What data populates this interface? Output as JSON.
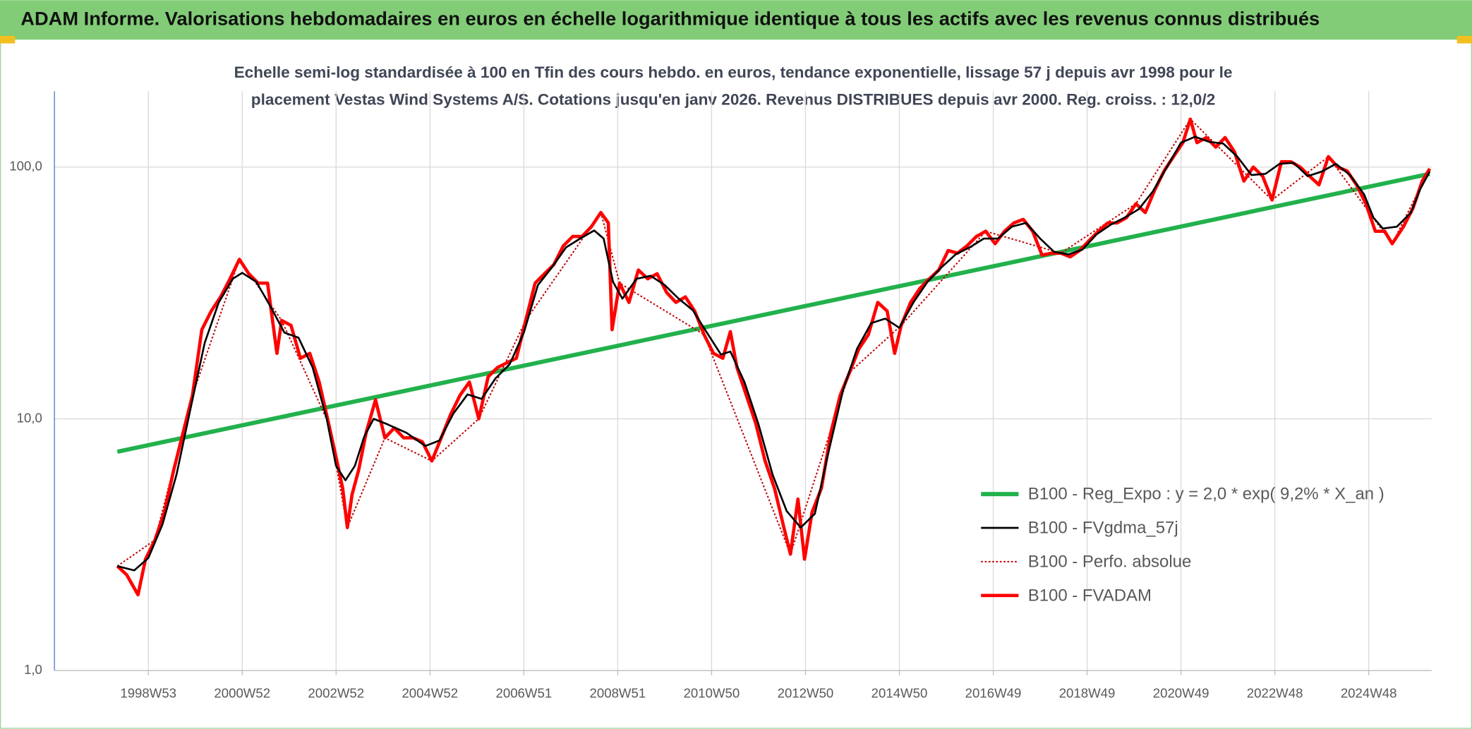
{
  "chart_data": {
    "type": "line",
    "title": "ADAM Informe. Valorisations hebdomadaires en euros en échelle logarithmique identique à tous les actifs avec les revenus connus distribués",
    "subtitle": [
      "Echelle semi-log standardisée à 100 en Tfin des cours hebdo. en euros, tendance exponentielle, lissage 57 j depuis avr 1998 pour le",
      "placement Vestas Wind Systems A/S. Cotations jusqu'en janv 2026. Revenus DISTRIBUES depuis avr 2000. Reg. croiss. : 12,0/2"
    ],
    "log_scale": true,
    "grid": true,
    "legend": "lower right",
    "xlim": [
      1997.0,
      2026.34
    ],
    "xticks": [
      {
        "value": 1999.0,
        "label": "1998W53"
      },
      {
        "value": 2001.0,
        "label": "2000W52"
      },
      {
        "value": 2003.0,
        "label": "2002W52"
      },
      {
        "value": 2005.0,
        "label": "2004W52"
      },
      {
        "value": 2007.0,
        "label": "2006W51"
      },
      {
        "value": 2009.0,
        "label": "2008W51"
      },
      {
        "value": 2011.0,
        "label": "2010W50"
      },
      {
        "value": 2013.0,
        "label": "2012W50"
      },
      {
        "value": 2015.0,
        "label": "2014W50"
      },
      {
        "value": 2017.0,
        "label": "2016W49"
      },
      {
        "value": 2019.0,
        "label": "2018W49"
      },
      {
        "value": 2021.0,
        "label": "2020W49"
      },
      {
        "value": 2023.0,
        "label": "2022W48"
      },
      {
        "value": 2025.0,
        "label": "2024W48"
      }
    ],
    "ylim": [
      1,
      200
    ],
    "yticks": [
      {
        "value": 1,
        "label": "1,0"
      },
      {
        "value": 10,
        "label": "10,0"
      },
      {
        "value": 100,
        "label": "100,0"
      }
    ],
    "series": [
      {
        "name": "B100 - Reg_Expo : y = 2,0 * exp( 9,2% *  X_an )",
        "color": "#22b14c",
        "line_style": "solid",
        "x": [
          1998.34,
          2026.3
        ],
        "values": [
          7.4,
          94
        ]
      },
      {
        "name": "B100 - FVgdma_57j",
        "color": "#000000",
        "line_style": "solid",
        "x": [
          1998.34,
          1998.7,
          1999.0,
          1999.3,
          1999.6,
          1999.9,
          2000.2,
          2000.5,
          2000.8,
          2001.0,
          2001.3,
          2001.6,
          2001.9,
          2002.2,
          2002.5,
          2002.8,
          2003.0,
          2003.2,
          2003.4,
          2003.6,
          2003.8,
          2004.1,
          2004.5,
          2004.9,
          2005.2,
          2005.5,
          2005.8,
          2006.1,
          2006.4,
          2006.7,
          2007.0,
          2007.3,
          2007.6,
          2007.9,
          2008.2,
          2008.5,
          2008.7,
          2008.9,
          2009.1,
          2009.4,
          2009.7,
          2010.0,
          2010.3,
          2010.6,
          2010.9,
          2011.2,
          2011.4,
          2011.7,
          2012.0,
          2012.3,
          2012.6,
          2012.9,
          2013.2,
          2013.5,
          2013.8,
          2014.1,
          2014.4,
          2014.7,
          2015.0,
          2015.3,
          2015.6,
          2015.9,
          2016.2,
          2016.5,
          2016.8,
          2017.1,
          2017.4,
          2017.7,
          2018.0,
          2018.3,
          2018.6,
          2018.9,
          2019.2,
          2019.5,
          2019.8,
          2020.1,
          2020.4,
          2020.7,
          2021.0,
          2021.3,
          2021.6,
          2021.9,
          2022.2,
          2022.5,
          2022.8,
          2023.1,
          2023.4,
          2023.7,
          2024.0,
          2024.3,
          2024.6,
          2024.9,
          2025.1,
          2025.3,
          2025.6,
          2025.9,
          2026.1,
          2026.3
        ],
        "values": [
          2.6,
          2.5,
          2.8,
          3.8,
          6,
          11,
          20,
          29,
          36,
          38,
          35,
          28,
          22,
          21,
          16,
          10,
          6.5,
          5.7,
          6.5,
          8.5,
          10,
          9.5,
          8.8,
          7.8,
          8.2,
          10.5,
          12.5,
          12,
          14.5,
          16.5,
          22,
          34,
          40,
          48,
          52,
          56,
          52,
          35,
          30,
          36,
          37,
          34,
          30,
          27,
          22,
          18,
          18.5,
          14,
          9.5,
          6,
          4.3,
          3.7,
          4.2,
          7.5,
          13,
          19,
          24,
          25,
          23,
          29,
          35,
          40,
          45,
          48,
          52,
          52,
          58,
          60,
          52,
          46,
          45,
          47,
          54,
          59,
          63,
          68,
          80,
          100,
          125,
          132,
          126,
          124,
          110,
          93,
          94,
          103,
          104,
          92,
          96,
          103,
          93,
          78,
          63,
          57,
          58,
          66,
          82,
          96
        ]
      },
      {
        "name": "B100 - Perfo. absolue",
        "color": "#c00000",
        "line_style": "dotted",
        "x": [
          1998.34,
          1999.14,
          1999.94,
          2000.94,
          2001.84,
          2002.84,
          2003.24,
          2004.04,
          2005.04,
          2006.04,
          2007.04,
          2008.64,
          2009.04,
          2010.84,
          2012.68,
          2013.94,
          2015.04,
          2016.84,
          2018.44,
          2020.04,
          2021.2,
          2022.94,
          2024.14,
          2025.5,
          2026.3
        ],
        "values": [
          2.6,
          3.3,
          12.4,
          43,
          24.6,
          9.6,
          3.7,
          8.4,
          6.8,
          10,
          24.6,
          66,
          34.6,
          21.6,
          2.9,
          15.3,
          23.5,
          55.6,
          45.5,
          71.5,
          155,
          74,
          110,
          49.6,
          98.5
        ]
      },
      {
        "name": "B100 - FVADAM",
        "color": "#ff0000",
        "line_style": "solid",
        "x": [
          1998.34,
          1998.54,
          1998.78,
          1998.94,
          1999.14,
          1999.34,
          1999.54,
          1999.74,
          1999.94,
          2000.14,
          2000.34,
          2000.54,
          2000.74,
          2000.94,
          2001.14,
          2001.34,
          2001.54,
          2001.74,
          2001.84,
          2002.04,
          2002.24,
          2002.44,
          2002.64,
          2002.84,
          2003.04,
          2003.14,
          2003.24,
          2003.34,
          2003.48,
          2003.64,
          2003.84,
          2004.04,
          2004.24,
          2004.44,
          2004.64,
          2004.84,
          2005.04,
          2005.24,
          2005.44,
          2005.64,
          2005.84,
          2006.04,
          2006.24,
          2006.44,
          2006.64,
          2006.84,
          2007.04,
          2007.24,
          2007.44,
          2007.64,
          2007.84,
          2008.04,
          2008.24,
          2008.44,
          2008.64,
          2008.8,
          2008.88,
          2009.04,
          2009.24,
          2009.44,
          2009.64,
          2009.84,
          2010.04,
          2010.24,
          2010.44,
          2010.64,
          2010.84,
          2011.04,
          2011.24,
          2011.4,
          2011.54,
          2011.74,
          2011.94,
          2012.14,
          2012.34,
          2012.54,
          2012.68,
          2012.84,
          2012.98,
          2013.14,
          2013.34,
          2013.54,
          2013.74,
          2013.94,
          2014.14,
          2014.34,
          2014.54,
          2014.74,
          2014.9,
          2015.04,
          2015.24,
          2015.44,
          2015.64,
          2015.84,
          2016.04,
          2016.24,
          2016.44,
          2016.64,
          2016.84,
          2017.04,
          2017.24,
          2017.44,
          2017.64,
          2017.84,
          2018.04,
          2018.24,
          2018.44,
          2018.64,
          2018.84,
          2019.04,
          2019.24,
          2019.44,
          2019.64,
          2019.84,
          2020.04,
          2020.24,
          2020.44,
          2020.64,
          2020.84,
          2021.04,
          2021.2,
          2021.34,
          2021.54,
          2021.74,
          2021.94,
          2022.14,
          2022.34,
          2022.54,
          2022.74,
          2022.94,
          2023.14,
          2023.34,
          2023.54,
          2023.74,
          2023.94,
          2024.14,
          2024.34,
          2024.54,
          2024.74,
          2024.94,
          2025.14,
          2025.34,
          2025.5,
          2025.74,
          2025.94,
          2026.14,
          2026.3
        ],
        "values": [
          2.6,
          2.4,
          2.0,
          2.77,
          3.3,
          4.25,
          6.25,
          8.8,
          12.4,
          22.6,
          26.8,
          30.5,
          36,
          43,
          37.7,
          34.6,
          34.6,
          18.2,
          24.6,
          23.5,
          17.4,
          18.2,
          14,
          9.6,
          6.5,
          5.3,
          3.7,
          5.0,
          6.25,
          8.8,
          11.9,
          8.4,
          9.2,
          8.4,
          8.4,
          8.1,
          6.8,
          8.4,
          10.4,
          12.4,
          14,
          10,
          14.7,
          16,
          16.7,
          17.4,
          24.6,
          34.6,
          37.7,
          41,
          48.6,
          53,
          53,
          58,
          66,
          60,
          22.6,
          34.6,
          29,
          39,
          36,
          37.7,
          31.8,
          29,
          30.5,
          26.8,
          21.6,
          18.2,
          17.4,
          22.2,
          16,
          12.4,
          9.6,
          6.8,
          5.3,
          3.7,
          2.9,
          4.8,
          2.77,
          4.25,
          5.3,
          8.8,
          12.4,
          15.3,
          19,
          21.6,
          29,
          26.8,
          18.2,
          23.5,
          29,
          33,
          36,
          39,
          46.6,
          45.5,
          48.6,
          53,
          55.6,
          49.6,
          55.6,
          60,
          62,
          55.6,
          44.7,
          45.5,
          45.5,
          44,
          46.6,
          51,
          55.6,
          60,
          60,
          63,
          71.5,
          66,
          81,
          96.5,
          110,
          125,
          155,
          125,
          131,
          120,
          131,
          115,
          88,
          100,
          92,
          74,
          105,
          105,
          100,
          92,
          85,
          110,
          100,
          96.5,
          85,
          71.5,
          55.6,
          55.6,
          49.6,
          58,
          68.5,
          88,
          98.5
        ]
      }
    ]
  }
}
